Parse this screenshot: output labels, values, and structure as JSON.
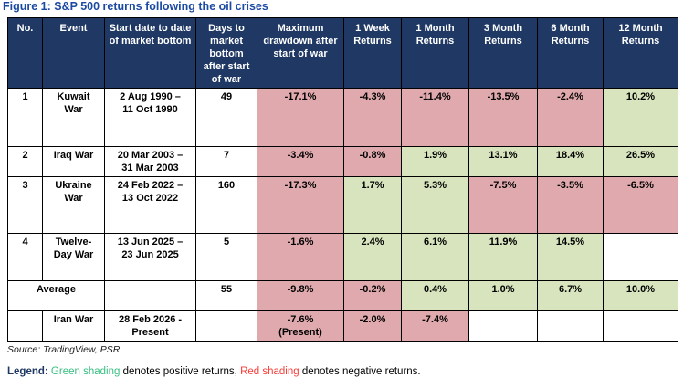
{
  "title": "Figure 1: S&P 500 returns following the oil crises",
  "source": "Source: TradingView, PSR",
  "legend": {
    "label": "Legend:",
    "green_text": " Green shading",
    "green_desc": " denotes positive returns, ",
    "red_text": "Red shading",
    "red_desc": " denotes negative returns."
  },
  "colors": {
    "header_bg": "#1F3864",
    "positive": "#D7E4BD",
    "negative": "#E0A9AD",
    "title": "#1B4AA2",
    "legend_green": "#35BE80",
    "legend_red": "#F93B36"
  },
  "table": {
    "headers": [
      "No.",
      "Event",
      "Start date to date of market bottom",
      "Days to market bottom after start of war",
      "Maximum drawdown after start of war",
      "1 Week Returns",
      "1 Month Returns",
      "3 Month Returns",
      "6 Month Returns",
      "12 Month Returns"
    ],
    "rows": [
      {
        "name": "row-kuwait-war",
        "h": 64,
        "cells": [
          {
            "t": "1"
          },
          {
            "t": "Kuwait\nWar"
          },
          {
            "t": "2 Aug 1990 –\n11 Oct 1990"
          },
          {
            "t": "49"
          },
          {
            "t": "-17.1%",
            "s": "neg"
          },
          {
            "t": "-4.3%",
            "s": "neg"
          },
          {
            "t": "-11.4%",
            "s": "neg"
          },
          {
            "t": "-13.5%",
            "s": "neg"
          },
          {
            "t": "-2.4%",
            "s": "neg"
          },
          {
            "t": "10.2%",
            "s": "pos"
          }
        ]
      },
      {
        "name": "row-iraq-war",
        "h": 33,
        "cells": [
          {
            "t": "2"
          },
          {
            "t": "Iraq War"
          },
          {
            "t": "20 Mar 2003 –\n31 Mar 2003"
          },
          {
            "t": "7"
          },
          {
            "t": "-3.4%",
            "s": "neg"
          },
          {
            "t": "-0.8%",
            "s": "neg"
          },
          {
            "t": "1.9%",
            "s": "pos"
          },
          {
            "t": "13.1%",
            "s": "pos"
          },
          {
            "t": "18.4%",
            "s": "pos"
          },
          {
            "t": "26.5%",
            "s": "pos"
          }
        ]
      },
      {
        "name": "row-ukraine-war",
        "h": 62,
        "cells": [
          {
            "t": "3"
          },
          {
            "t": "Ukraine\nWar"
          },
          {
            "t": "24 Feb 2022 –\n13 Oct 2022"
          },
          {
            "t": "160"
          },
          {
            "t": "-17.3%",
            "s": "neg"
          },
          {
            "t": "1.7%",
            "s": "pos"
          },
          {
            "t": "5.3%",
            "s": "pos"
          },
          {
            "t": "-7.5%",
            "s": "neg"
          },
          {
            "t": "-3.5%",
            "s": "neg"
          },
          {
            "t": "-6.5%",
            "s": "neg"
          }
        ]
      },
      {
        "name": "row-twelve-day-war",
        "h": 52,
        "cells": [
          {
            "t": "4"
          },
          {
            "t": "Twelve-\nDay War"
          },
          {
            "t": "13 Jun 2025 –\n23 Jun 2025"
          },
          {
            "t": "5"
          },
          {
            "t": "-1.6%",
            "s": "neg"
          },
          {
            "t": "2.4%",
            "s": "pos"
          },
          {
            "t": "6.1%",
            "s": "pos"
          },
          {
            "t": "11.9%",
            "s": "pos"
          },
          {
            "t": "14.5%",
            "s": "pos"
          },
          {
            "t": ""
          }
        ]
      },
      {
        "name": "row-average",
        "h": 33,
        "cells": [
          {
            "t": "Average",
            "b": true,
            "cs": 2
          },
          {
            "t": ""
          },
          {
            "t": "55",
            "b": true
          },
          {
            "t": "-9.8%",
            "s": "neg",
            "b": true
          },
          {
            "t": "-0.2%",
            "s": "neg",
            "b": true
          },
          {
            "t": "0.4%",
            "s": "pos",
            "b": true
          },
          {
            "t": "1.0%",
            "s": "pos",
            "b": true
          },
          {
            "t": "6.7%",
            "s": "pos",
            "b": true
          },
          {
            "t": "10.0%",
            "s": "pos",
            "b": true
          }
        ]
      },
      {
        "name": "row-iran-war",
        "h": 33,
        "cells": [
          {
            "t": ""
          },
          {
            "t": "Iran War"
          },
          {
            "t": "28 Feb 2026 -\nPresent"
          },
          {
            "t": ""
          },
          {
            "t": "-7.6%\n(Present)",
            "s": "neg"
          },
          {
            "t": "-2.0%",
            "s": "neg"
          },
          {
            "t": "-7.4%",
            "s": "neg"
          },
          {
            "t": ""
          },
          {
            "t": ""
          },
          {
            "t": ""
          }
        ]
      }
    ]
  }
}
